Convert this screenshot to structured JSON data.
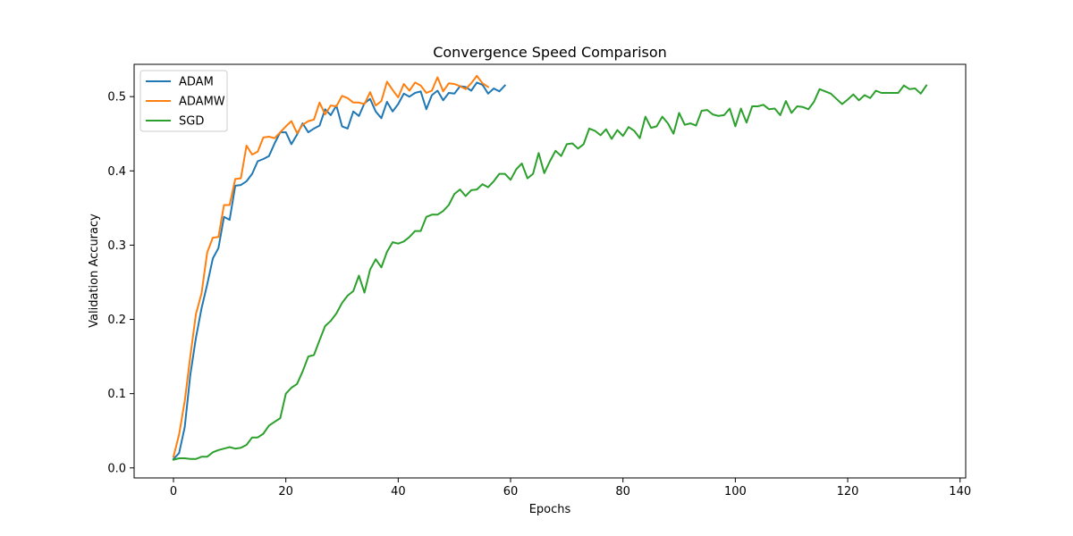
{
  "chart_data": {
    "type": "line",
    "title": "Convergence Speed Comparison",
    "xlabel": "Epochs",
    "ylabel": "Validation Accuracy",
    "xlim": [
      -7,
      141
    ],
    "ylim": [
      -0.0135,
      0.5435
    ],
    "xticks": [
      0,
      20,
      40,
      60,
      80,
      100,
      120,
      140
    ],
    "yticks": [
      0.0,
      0.1,
      0.2,
      0.3,
      0.4,
      0.5
    ],
    "xtick_labels": [
      "0",
      "20",
      "40",
      "60",
      "80",
      "100",
      "120",
      "140"
    ],
    "ytick_labels": [
      "0.0",
      "0.1",
      "0.2",
      "0.3",
      "0.4",
      "0.5"
    ],
    "grid": false,
    "legend_position": "top-left",
    "series": [
      {
        "name": "ADAM",
        "color": "#1f77b4",
        "x_start": 0,
        "values": [
          0.012,
          0.02,
          0.055,
          0.125,
          0.175,
          0.215,
          0.247,
          0.282,
          0.296,
          0.338,
          0.334,
          0.38,
          0.381,
          0.386,
          0.396,
          0.413,
          0.416,
          0.42,
          0.437,
          0.452,
          0.452,
          0.436,
          0.449,
          0.464,
          0.452,
          0.457,
          0.461,
          0.483,
          0.475,
          0.488,
          0.46,
          0.457,
          0.48,
          0.474,
          0.491,
          0.497,
          0.48,
          0.471,
          0.493,
          0.48,
          0.49,
          0.504,
          0.5,
          0.505,
          0.507,
          0.483,
          0.502,
          0.508,
          0.495,
          0.505,
          0.504,
          0.514,
          0.513,
          0.508,
          0.519,
          0.516,
          0.504,
          0.511,
          0.507,
          0.515
        ]
      },
      {
        "name": "ADAMW",
        "color": "#ff7f0e",
        "x_start": 0,
        "values": [
          0.015,
          0.045,
          0.09,
          0.15,
          0.207,
          0.235,
          0.29,
          0.31,
          0.311,
          0.354,
          0.354,
          0.389,
          0.39,
          0.434,
          0.422,
          0.426,
          0.445,
          0.446,
          0.444,
          0.452,
          0.46,
          0.467,
          0.451,
          0.462,
          0.467,
          0.469,
          0.492,
          0.476,
          0.488,
          0.487,
          0.501,
          0.498,
          0.492,
          0.492,
          0.49,
          0.506,
          0.488,
          0.494,
          0.52,
          0.509,
          0.499,
          0.517,
          0.508,
          0.519,
          0.515,
          0.505,
          0.508,
          0.526,
          0.507,
          0.518,
          0.517,
          0.514,
          0.51,
          0.518,
          0.528,
          0.518,
          0.513
        ]
      },
      {
        "name": "SGD",
        "color": "#2ca02c",
        "x_start": 0,
        "values": [
          0.011,
          0.013,
          0.013,
          0.012,
          0.012,
          0.015,
          0.015,
          0.021,
          0.024,
          0.026,
          0.028,
          0.026,
          0.027,
          0.031,
          0.041,
          0.041,
          0.046,
          0.057,
          0.062,
          0.067,
          0.1,
          0.108,
          0.113,
          0.13,
          0.15,
          0.152,
          0.172,
          0.191,
          0.198,
          0.208,
          0.222,
          0.232,
          0.238,
          0.259,
          0.236,
          0.267,
          0.281,
          0.27,
          0.291,
          0.304,
          0.302,
          0.305,
          0.311,
          0.319,
          0.319,
          0.338,
          0.341,
          0.341,
          0.346,
          0.354,
          0.369,
          0.375,
          0.366,
          0.374,
          0.375,
          0.382,
          0.378,
          0.386,
          0.396,
          0.396,
          0.388,
          0.402,
          0.41,
          0.39,
          0.396,
          0.424,
          0.397,
          0.413,
          0.427,
          0.42,
          0.436,
          0.437,
          0.43,
          0.436,
          0.457,
          0.454,
          0.448,
          0.456,
          0.443,
          0.455,
          0.447,
          0.459,
          0.454,
          0.444,
          0.473,
          0.458,
          0.46,
          0.473,
          0.464,
          0.45,
          0.478,
          0.462,
          0.464,
          0.461,
          0.481,
          0.482,
          0.476,
          0.474,
          0.475,
          0.484,
          0.46,
          0.484,
          0.465,
          0.487,
          0.487,
          0.489,
          0.483,
          0.484,
          0.475,
          0.494,
          0.478,
          0.487,
          0.486,
          0.483,
          0.493,
          0.51,
          0.507,
          0.504,
          0.497,
          0.49,
          0.496,
          0.503,
          0.495,
          0.502,
          0.498,
          0.508,
          0.505,
          0.505,
          0.505,
          0.505,
          0.515,
          0.51,
          0.511,
          0.504,
          0.515
        ]
      }
    ]
  }
}
